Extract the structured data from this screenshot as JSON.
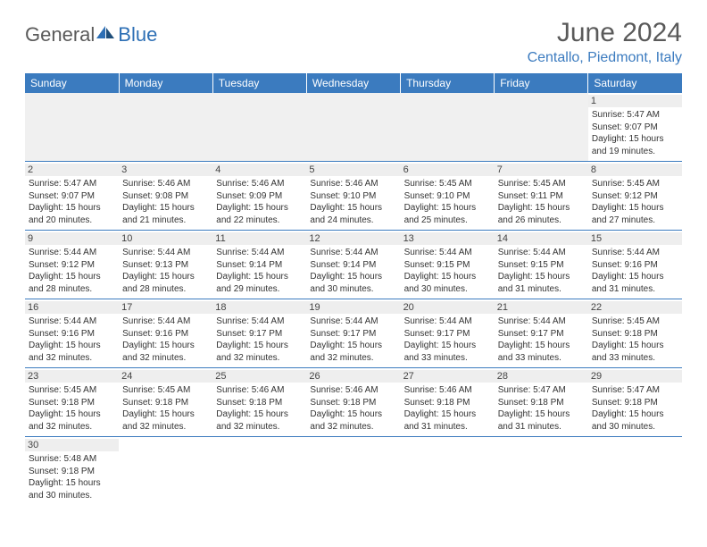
{
  "brand": {
    "part1": "General",
    "part2": "Blue"
  },
  "title": "June 2024",
  "location": "Centallo, Piedmont, Italy",
  "colors": {
    "header_bg": "#3b7bbf",
    "header_text": "#ffffff",
    "accent": "#2d6fb5",
    "text": "#333333",
    "muted": "#5a5a5a",
    "daynum_bg": "#eeeeee",
    "row_border": "#3b7bbf"
  },
  "weekdays": [
    "Sunday",
    "Monday",
    "Tuesday",
    "Wednesday",
    "Thursday",
    "Friday",
    "Saturday"
  ],
  "days": {
    "1": {
      "sunrise": "Sunrise: 5:47 AM",
      "sunset": "Sunset: 9:07 PM",
      "dl1": "Daylight: 15 hours",
      "dl2": "and 19 minutes."
    },
    "2": {
      "sunrise": "Sunrise: 5:47 AM",
      "sunset": "Sunset: 9:07 PM",
      "dl1": "Daylight: 15 hours",
      "dl2": "and 20 minutes."
    },
    "3": {
      "sunrise": "Sunrise: 5:46 AM",
      "sunset": "Sunset: 9:08 PM",
      "dl1": "Daylight: 15 hours",
      "dl2": "and 21 minutes."
    },
    "4": {
      "sunrise": "Sunrise: 5:46 AM",
      "sunset": "Sunset: 9:09 PM",
      "dl1": "Daylight: 15 hours",
      "dl2": "and 22 minutes."
    },
    "5": {
      "sunrise": "Sunrise: 5:46 AM",
      "sunset": "Sunset: 9:10 PM",
      "dl1": "Daylight: 15 hours",
      "dl2": "and 24 minutes."
    },
    "6": {
      "sunrise": "Sunrise: 5:45 AM",
      "sunset": "Sunset: 9:10 PM",
      "dl1": "Daylight: 15 hours",
      "dl2": "and 25 minutes."
    },
    "7": {
      "sunrise": "Sunrise: 5:45 AM",
      "sunset": "Sunset: 9:11 PM",
      "dl1": "Daylight: 15 hours",
      "dl2": "and 26 minutes."
    },
    "8": {
      "sunrise": "Sunrise: 5:45 AM",
      "sunset": "Sunset: 9:12 PM",
      "dl1": "Daylight: 15 hours",
      "dl2": "and 27 minutes."
    },
    "9": {
      "sunrise": "Sunrise: 5:44 AM",
      "sunset": "Sunset: 9:12 PM",
      "dl1": "Daylight: 15 hours",
      "dl2": "and 28 minutes."
    },
    "10": {
      "sunrise": "Sunrise: 5:44 AM",
      "sunset": "Sunset: 9:13 PM",
      "dl1": "Daylight: 15 hours",
      "dl2": "and 28 minutes."
    },
    "11": {
      "sunrise": "Sunrise: 5:44 AM",
      "sunset": "Sunset: 9:14 PM",
      "dl1": "Daylight: 15 hours",
      "dl2": "and 29 minutes."
    },
    "12": {
      "sunrise": "Sunrise: 5:44 AM",
      "sunset": "Sunset: 9:14 PM",
      "dl1": "Daylight: 15 hours",
      "dl2": "and 30 minutes."
    },
    "13": {
      "sunrise": "Sunrise: 5:44 AM",
      "sunset": "Sunset: 9:15 PM",
      "dl1": "Daylight: 15 hours",
      "dl2": "and 30 minutes."
    },
    "14": {
      "sunrise": "Sunrise: 5:44 AM",
      "sunset": "Sunset: 9:15 PM",
      "dl1": "Daylight: 15 hours",
      "dl2": "and 31 minutes."
    },
    "15": {
      "sunrise": "Sunrise: 5:44 AM",
      "sunset": "Sunset: 9:16 PM",
      "dl1": "Daylight: 15 hours",
      "dl2": "and 31 minutes."
    },
    "16": {
      "sunrise": "Sunrise: 5:44 AM",
      "sunset": "Sunset: 9:16 PM",
      "dl1": "Daylight: 15 hours",
      "dl2": "and 32 minutes."
    },
    "17": {
      "sunrise": "Sunrise: 5:44 AM",
      "sunset": "Sunset: 9:16 PM",
      "dl1": "Daylight: 15 hours",
      "dl2": "and 32 minutes."
    },
    "18": {
      "sunrise": "Sunrise: 5:44 AM",
      "sunset": "Sunset: 9:17 PM",
      "dl1": "Daylight: 15 hours",
      "dl2": "and 32 minutes."
    },
    "19": {
      "sunrise": "Sunrise: 5:44 AM",
      "sunset": "Sunset: 9:17 PM",
      "dl1": "Daylight: 15 hours",
      "dl2": "and 32 minutes."
    },
    "20": {
      "sunrise": "Sunrise: 5:44 AM",
      "sunset": "Sunset: 9:17 PM",
      "dl1": "Daylight: 15 hours",
      "dl2": "and 33 minutes."
    },
    "21": {
      "sunrise": "Sunrise: 5:44 AM",
      "sunset": "Sunset: 9:17 PM",
      "dl1": "Daylight: 15 hours",
      "dl2": "and 33 minutes."
    },
    "22": {
      "sunrise": "Sunrise: 5:45 AM",
      "sunset": "Sunset: 9:18 PM",
      "dl1": "Daylight: 15 hours",
      "dl2": "and 33 minutes."
    },
    "23": {
      "sunrise": "Sunrise: 5:45 AM",
      "sunset": "Sunset: 9:18 PM",
      "dl1": "Daylight: 15 hours",
      "dl2": "and 32 minutes."
    },
    "24": {
      "sunrise": "Sunrise: 5:45 AM",
      "sunset": "Sunset: 9:18 PM",
      "dl1": "Daylight: 15 hours",
      "dl2": "and 32 minutes."
    },
    "25": {
      "sunrise": "Sunrise: 5:46 AM",
      "sunset": "Sunset: 9:18 PM",
      "dl1": "Daylight: 15 hours",
      "dl2": "and 32 minutes."
    },
    "26": {
      "sunrise": "Sunrise: 5:46 AM",
      "sunset": "Sunset: 9:18 PM",
      "dl1": "Daylight: 15 hours",
      "dl2": "and 32 minutes."
    },
    "27": {
      "sunrise": "Sunrise: 5:46 AM",
      "sunset": "Sunset: 9:18 PM",
      "dl1": "Daylight: 15 hours",
      "dl2": "and 31 minutes."
    },
    "28": {
      "sunrise": "Sunrise: 5:47 AM",
      "sunset": "Sunset: 9:18 PM",
      "dl1": "Daylight: 15 hours",
      "dl2": "and 31 minutes."
    },
    "29": {
      "sunrise": "Sunrise: 5:47 AM",
      "sunset": "Sunset: 9:18 PM",
      "dl1": "Daylight: 15 hours",
      "dl2": "and 30 minutes."
    },
    "30": {
      "sunrise": "Sunrise: 5:48 AM",
      "sunset": "Sunset: 9:18 PM",
      "dl1": "Daylight: 15 hours",
      "dl2": "and 30 minutes."
    }
  },
  "layout": [
    [
      null,
      null,
      null,
      null,
      null,
      null,
      "1"
    ],
    [
      "2",
      "3",
      "4",
      "5",
      "6",
      "7",
      "8"
    ],
    [
      "9",
      "10",
      "11",
      "12",
      "13",
      "14",
      "15"
    ],
    [
      "16",
      "17",
      "18",
      "19",
      "20",
      "21",
      "22"
    ],
    [
      "23",
      "24",
      "25",
      "26",
      "27",
      "28",
      "29"
    ],
    [
      "30",
      null,
      null,
      null,
      null,
      null,
      null
    ]
  ]
}
